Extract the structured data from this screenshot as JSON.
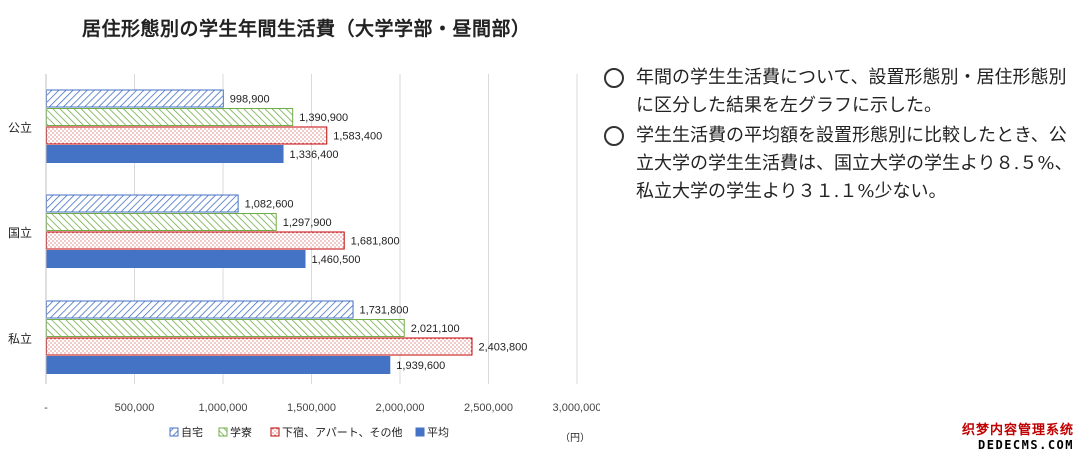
{
  "title": "居住形態別の学生年間生活費（大学学部・昼間部）",
  "colors": {
    "home": "#4472c4",
    "dorm": "#70ad47",
    "boarding": "#c00000",
    "average": "#4472c4",
    "grid": "#d9d9d9",
    "axis_text": "#444444"
  },
  "chart_data": {
    "type": "bar",
    "orientation": "horizontal",
    "title": "",
    "unit_label": "（円）",
    "categories": [
      "公立",
      "国立",
      "私立"
    ],
    "series": [
      {
        "name": "自宅",
        "pattern": "diagonal-hatch",
        "values": [
          998900,
          1082600,
          1731800
        ],
        "labels": [
          "998,900",
          "1,082,600",
          "1,731,800"
        ]
      },
      {
        "name": "学寮",
        "pattern": "diagonal-hatch",
        "values": [
          1390900,
          1297900,
          2021100
        ],
        "labels": [
          "1,390,900",
          "1,297,900",
          "2,021,100"
        ]
      },
      {
        "name": "下宿、アパート、その他",
        "pattern": "dots",
        "values": [
          1583400,
          1681800,
          2403800
        ],
        "labels": [
          "1,583,400",
          "1,681,800",
          "2,403,800"
        ]
      },
      {
        "name": "平均",
        "pattern": "solid",
        "values": [
          1336400,
          1460500,
          1939600
        ],
        "labels": [
          "1,336,400",
          "1,460,500",
          "1,939,600"
        ]
      }
    ],
    "xlim": [
      0,
      3000000
    ],
    "xticks": [
      0,
      500000,
      1000000,
      1500000,
      2000000,
      2500000,
      3000000
    ],
    "xtick_labels": [
      "-",
      "500,000",
      "1,000,000",
      "1,500,000",
      "2,000,000",
      "2,500,000",
      "3,000,000"
    ],
    "grid": true,
    "legend_position": "bottom"
  },
  "notes": [
    "年間の学生生活費について、設置形態別・居住形態別に区分した結果を左グラフに示した。",
    "学生生活費の平均額を設置形態別に比較したとき、公立大学の学生生活費は、国立大学の学生より８.５%、私立大学の学生より３１.１%少ない。"
  ],
  "watermark": {
    "line1": "织梦内容管理系统",
    "line2": "DEDECMS.COM"
  }
}
